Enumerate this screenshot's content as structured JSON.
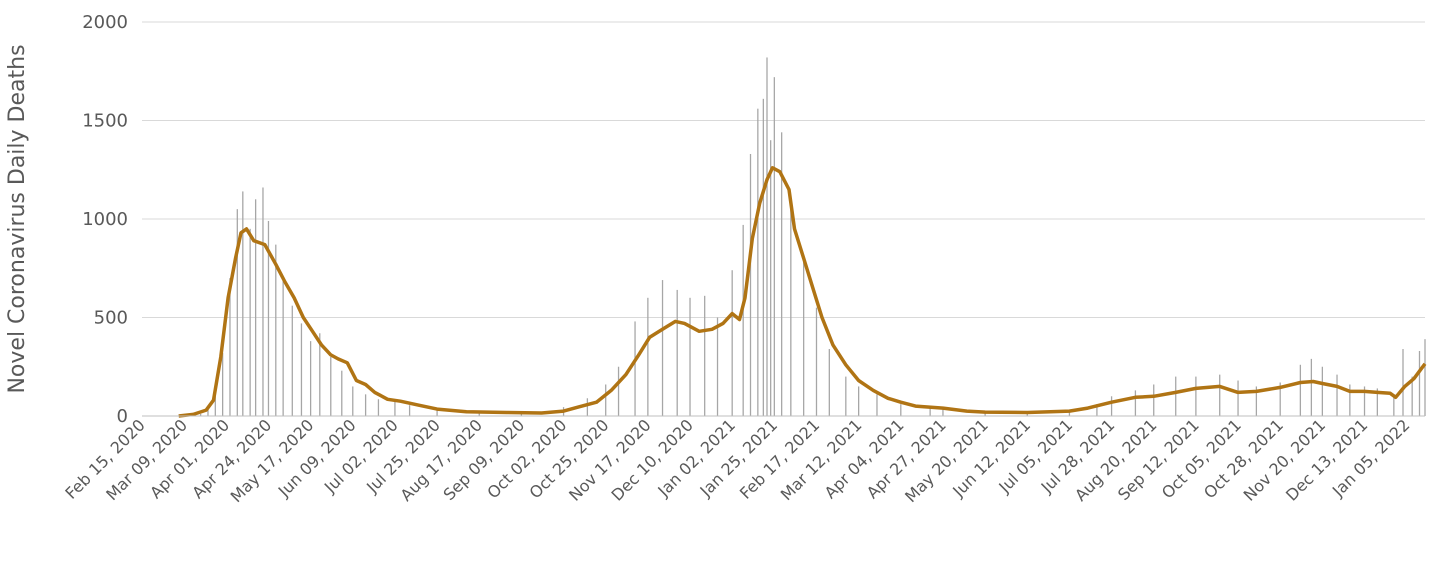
{
  "chart_data": {
    "type": "bar",
    "title": "",
    "xlabel": "",
    "ylabel": "Novel Coronavirus Daily Deaths",
    "ylim": [
      0,
      2000
    ],
    "yticks": [
      0,
      500,
      1000,
      1500,
      2000
    ],
    "grid": true,
    "legend": "none",
    "x_start": "2020-02-15",
    "x_end": "2022-01-15",
    "x_tick_labels": [
      "Feb 15, 2020",
      "Mar 09, 2020",
      "Apr 01, 2020",
      "Apr 24, 2020",
      "May 17, 2020",
      "Jun 09, 2020",
      "Jul 02, 2020",
      "Jul 25, 2020",
      "Aug 17, 2020",
      "Sep 09, 2020",
      "Oct 02, 2020",
      "Oct 25, 2020",
      "Nov 17, 2020",
      "Dec 10, 2020",
      "Jan 02, 2021",
      "Jan 25, 2021",
      "Feb 17, 2021",
      "Mar 12, 2021",
      "Apr 04, 2021",
      "Apr 27, 2021",
      "May 20, 2021",
      "Jun 12, 2021",
      "Jul 05, 2021",
      "Jul 28, 2021",
      "Aug 20, 2021",
      "Sep 12, 2021",
      "Oct 05, 2021",
      "Oct 28, 2021",
      "Nov 20, 2021",
      "Dec 13, 2021",
      "Jan 05, 2022"
    ],
    "series": [
      {
        "type": "bar",
        "color": "#a6a6a6",
        "description_of_values": "approximate daily deaths read at selected dates; daily bars vary around the trend",
        "points": [
          [
            "2020-02-15",
            0
          ],
          [
            "2020-03-06",
            0
          ],
          [
            "2020-03-12",
            2
          ],
          [
            "2020-03-18",
            10
          ],
          [
            "2020-03-22",
            40
          ],
          [
            "2020-03-26",
            130
          ],
          [
            "2020-03-30",
            320
          ],
          [
            "2020-04-03",
            700
          ],
          [
            "2020-04-07",
            1050
          ],
          [
            "2020-04-10",
            1140
          ],
          [
            "2020-04-14",
            950
          ],
          [
            "2020-04-17",
            1100
          ],
          [
            "2020-04-21",
            1160
          ],
          [
            "2020-04-24",
            990
          ],
          [
            "2020-04-28",
            870
          ],
          [
            "2020-05-02",
            700
          ],
          [
            "2020-05-07",
            560
          ],
          [
            "2020-05-12",
            470
          ],
          [
            "2020-05-17",
            380
          ],
          [
            "2020-05-22",
            420
          ],
          [
            "2020-05-28",
            300
          ],
          [
            "2020-06-03",
            230
          ],
          [
            "2020-06-09",
            150
          ],
          [
            "2020-06-16",
            110
          ],
          [
            "2020-06-23",
            85
          ],
          [
            "2020-07-02",
            75
          ],
          [
            "2020-07-10",
            55
          ],
          [
            "2020-07-25",
            30
          ],
          [
            "2020-08-17",
            22
          ],
          [
            "2020-09-09",
            18
          ],
          [
            "2020-10-02",
            45
          ],
          [
            "2020-10-15",
            90
          ],
          [
            "2020-10-25",
            160
          ],
          [
            "2020-11-01",
            250
          ],
          [
            "2020-11-10",
            480
          ],
          [
            "2020-11-17",
            600
          ],
          [
            "2020-11-25",
            690
          ],
          [
            "2020-12-03",
            640
          ],
          [
            "2020-12-10",
            600
          ],
          [
            "2020-12-18",
            610
          ],
          [
            "2020-12-25",
            500
          ],
          [
            "2021-01-02",
            740
          ],
          [
            "2021-01-08",
            970
          ],
          [
            "2021-01-12",
            1330
          ],
          [
            "2021-01-16",
            1560
          ],
          [
            "2021-01-19",
            1610
          ],
          [
            "2021-01-21",
            1820
          ],
          [
            "2021-01-23",
            1400
          ],
          [
            "2021-01-25",
            1720
          ],
          [
            "2021-01-29",
            1440
          ],
          [
            "2021-02-03",
            1050
          ],
          [
            "2021-02-10",
            790
          ],
          [
            "2021-02-17",
            550
          ],
          [
            "2021-02-24",
            340
          ],
          [
            "2021-03-05",
            200
          ],
          [
            "2021-03-12",
            150
          ],
          [
            "2021-03-22",
            110
          ],
          [
            "2021-04-04",
            60
          ],
          [
            "2021-04-20",
            50
          ],
          [
            "2021-04-27",
            40
          ],
          [
            "2021-05-20",
            25
          ],
          [
            "2021-06-12",
            20
          ],
          [
            "2021-07-05",
            25
          ],
          [
            "2021-07-20",
            60
          ],
          [
            "2021-07-28",
            100
          ],
          [
            "2021-08-10",
            130
          ],
          [
            "2021-08-20",
            160
          ],
          [
            "2021-09-01",
            200
          ],
          [
            "2021-09-12",
            200
          ],
          [
            "2021-09-25",
            210
          ],
          [
            "2021-10-05",
            180
          ],
          [
            "2021-10-15",
            150
          ],
          [
            "2021-10-28",
            170
          ],
          [
            "2021-11-08",
            260
          ],
          [
            "2021-11-14",
            290
          ],
          [
            "2021-11-20",
            250
          ],
          [
            "2021-11-28",
            210
          ],
          [
            "2021-12-05",
            160
          ],
          [
            "2021-12-13",
            150
          ],
          [
            "2021-12-20",
            140
          ],
          [
            "2021-12-29",
            110
          ],
          [
            "2022-01-03",
            340
          ],
          [
            "2022-01-08",
            200
          ],
          [
            "2022-01-12",
            330
          ],
          [
            "2022-01-15",
            390
          ]
        ]
      },
      {
        "type": "line",
        "color": "#b07414",
        "description_of_values": "approximate smoothed trend read at selected dates",
        "points": [
          [
            "2020-03-06",
            0
          ],
          [
            "2020-03-14",
            8
          ],
          [
            "2020-03-21",
            30
          ],
          [
            "2020-03-25",
            80
          ],
          [
            "2020-03-29",
            300
          ],
          [
            "2020-04-02",
            600
          ],
          [
            "2020-04-06",
            800
          ],
          [
            "2020-04-09",
            930
          ],
          [
            "2020-04-12",
            950
          ],
          [
            "2020-04-16",
            890
          ],
          [
            "2020-04-22",
            870
          ],
          [
            "2020-04-28",
            770
          ],
          [
            "2020-05-03",
            680
          ],
          [
            "2020-05-08",
            600
          ],
          [
            "2020-05-13",
            500
          ],
          [
            "2020-05-18",
            430
          ],
          [
            "2020-05-23",
            360
          ],
          [
            "2020-05-28",
            310
          ],
          [
            "2020-06-01",
            290
          ],
          [
            "2020-06-06",
            270
          ],
          [
            "2020-06-11",
            180
          ],
          [
            "2020-06-16",
            160
          ],
          [
            "2020-06-21",
            120
          ],
          [
            "2020-06-28",
            85
          ],
          [
            "2020-07-05",
            75
          ],
          [
            "2020-07-15",
            55
          ],
          [
            "2020-07-25",
            35
          ],
          [
            "2020-08-10",
            22
          ],
          [
            "2020-09-01",
            18
          ],
          [
            "2020-09-20",
            15
          ],
          [
            "2020-10-02",
            25
          ],
          [
            "2020-10-10",
            45
          ],
          [
            "2020-10-20",
            70
          ],
          [
            "2020-10-28",
            130
          ],
          [
            "2020-11-05",
            210
          ],
          [
            "2020-11-12",
            310
          ],
          [
            "2020-11-18",
            400
          ],
          [
            "2020-11-25",
            440
          ],
          [
            "2020-12-02",
            480
          ],
          [
            "2020-12-07",
            470
          ],
          [
            "2020-12-15",
            430
          ],
          [
            "2020-12-22",
            440
          ],
          [
            "2020-12-28",
            470
          ],
          [
            "2021-01-02",
            520
          ],
          [
            "2021-01-06",
            490
          ],
          [
            "2021-01-09",
            600
          ],
          [
            "2021-01-13",
            900
          ],
          [
            "2021-01-17",
            1080
          ],
          [
            "2021-01-21",
            1200
          ],
          [
            "2021-01-24",
            1260
          ],
          [
            "2021-01-28",
            1240
          ],
          [
            "2021-02-02",
            1150
          ],
          [
            "2021-02-05",
            950
          ],
          [
            "2021-02-10",
            800
          ],
          [
            "2021-02-15",
            650
          ],
          [
            "2021-02-20",
            500
          ],
          [
            "2021-02-26",
            360
          ],
          [
            "2021-03-05",
            260
          ],
          [
            "2021-03-12",
            180
          ],
          [
            "2021-03-20",
            130
          ],
          [
            "2021-03-28",
            90
          ],
          [
            "2021-04-04",
            70
          ],
          [
            "2021-04-12",
            50
          ],
          [
            "2021-04-27",
            40
          ],
          [
            "2021-05-10",
            25
          ],
          [
            "2021-05-20",
            20
          ],
          [
            "2021-06-12",
            18
          ],
          [
            "2021-07-05",
            25
          ],
          [
            "2021-07-15",
            40
          ],
          [
            "2021-07-28",
            70
          ],
          [
            "2021-08-10",
            95
          ],
          [
            "2021-08-20",
            100
          ],
          [
            "2021-09-01",
            120
          ],
          [
            "2021-09-12",
            140
          ],
          [
            "2021-09-25",
            150
          ],
          [
            "2021-10-05",
            120
          ],
          [
            "2021-10-15",
            125
          ],
          [
            "2021-10-28",
            145
          ],
          [
            "2021-11-08",
            170
          ],
          [
            "2021-11-15",
            175
          ],
          [
            "2021-11-20",
            165
          ],
          [
            "2021-11-28",
            150
          ],
          [
            "2021-12-05",
            125
          ],
          [
            "2021-12-13",
            125
          ],
          [
            "2021-12-20",
            120
          ],
          [
            "2021-12-27",
            115
          ],
          [
            "2021-12-30",
            95
          ],
          [
            "2022-01-04",
            150
          ],
          [
            "2022-01-09",
            190
          ],
          [
            "2022-01-13",
            240
          ],
          [
            "2022-01-15",
            265
          ]
        ]
      }
    ]
  }
}
